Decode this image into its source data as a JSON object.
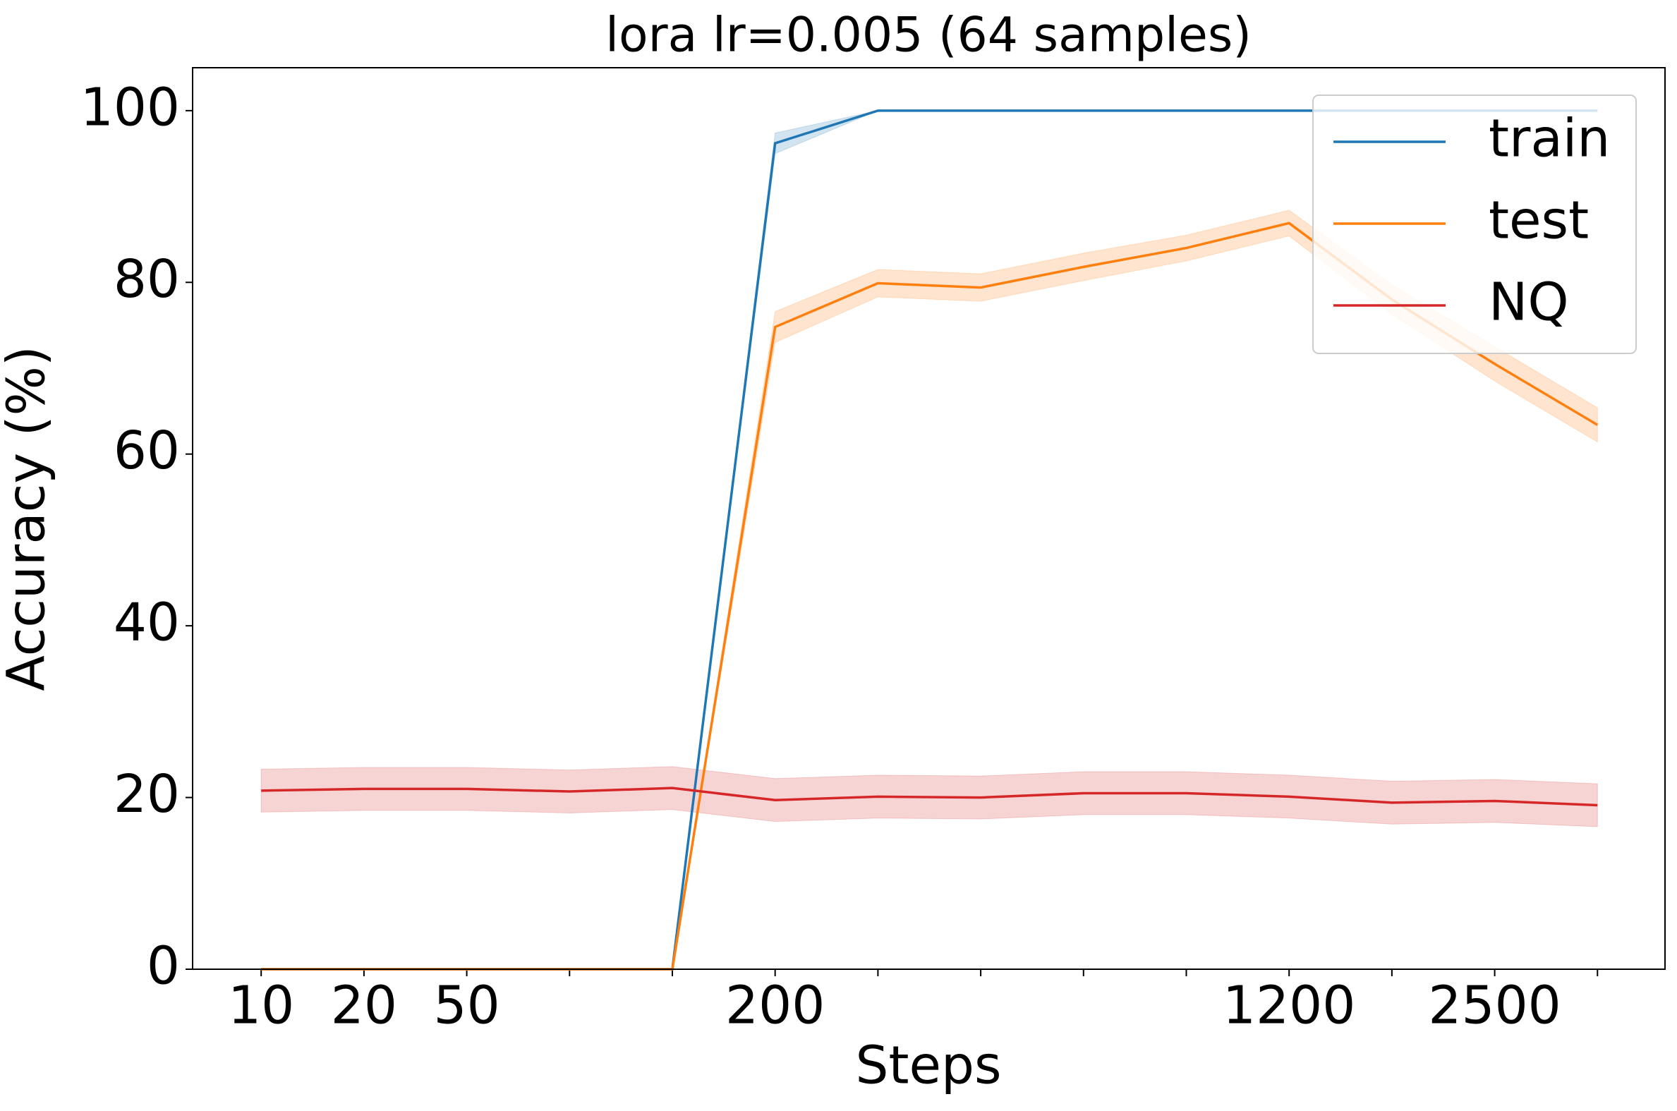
{
  "chart_data": {
    "type": "line",
    "title": "lora lr=0.005  (64 samples)",
    "x_label": "Steps",
    "y_label": "Accuracy (%)",
    "categories": [
      "10",
      "20",
      "50",
      null,
      null,
      "200",
      null,
      null,
      null,
      null,
      "1200",
      null,
      "2500",
      null
    ],
    "series": [
      {
        "name": "train",
        "color": "#1f77b4",
        "values": [
          0,
          0,
          0,
          0,
          0,
          96.2,
          100,
          100,
          100,
          100,
          100,
          100,
          100,
          100
        ],
        "lower": [
          0,
          0,
          0,
          0,
          0,
          95.0,
          100,
          100,
          100,
          100,
          100,
          100,
          100,
          100
        ],
        "upper": [
          0,
          0,
          0,
          0,
          0,
          97.4,
          100,
          100,
          100,
          100,
          100,
          100,
          100,
          100
        ]
      },
      {
        "name": "test",
        "color": "#ff7f0e",
        "values": [
          0,
          0,
          0,
          0,
          0,
          74.8,
          79.9,
          79.4,
          81.8,
          84.0,
          86.9,
          78.0,
          70.5,
          63.4
        ],
        "lower": [
          0,
          0,
          0,
          0,
          0,
          73.0,
          78.3,
          77.8,
          80.2,
          82.5,
          85.4,
          76.3,
          68.5,
          61.4
        ],
        "upper": [
          0,
          0,
          0,
          0,
          0,
          76.6,
          81.5,
          81.0,
          83.4,
          85.5,
          88.4,
          79.7,
          72.5,
          65.4
        ]
      },
      {
        "name": "NQ",
        "color": "#d62728",
        "values": [
          20.8,
          21.0,
          21.0,
          20.7,
          21.1,
          19.7,
          20.1,
          20.0,
          20.5,
          20.5,
          20.1,
          19.4,
          19.6,
          19.1
        ],
        "lower": [
          18.3,
          18.5,
          18.5,
          18.2,
          18.6,
          17.2,
          17.6,
          17.5,
          18.0,
          18.0,
          17.6,
          16.9,
          17.1,
          16.6
        ],
        "upper": [
          23.3,
          23.5,
          23.5,
          23.2,
          23.6,
          22.2,
          22.6,
          22.5,
          23.0,
          23.0,
          22.6,
          21.9,
          22.1,
          21.6
        ]
      }
    ],
    "ylim": [
      0,
      105
    ],
    "yticks": [
      0,
      20,
      40,
      60,
      80,
      100
    ],
    "legend": "upper right",
    "grid": false
  }
}
